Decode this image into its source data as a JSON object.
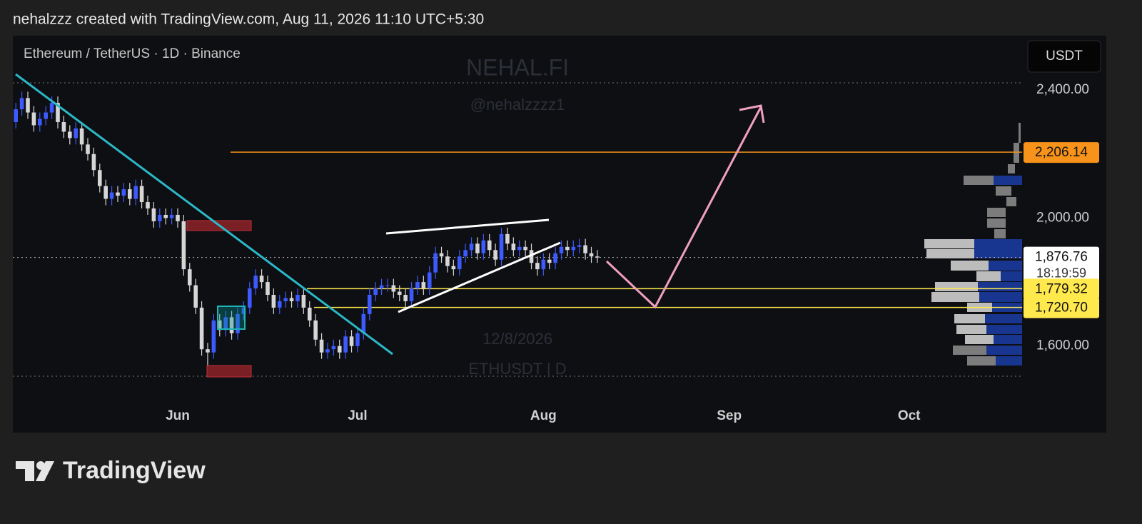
{
  "header": {
    "text": "nehalzzz created with TradingView.com, Aug 11, 2026 11:10 UTC+5:30"
  },
  "footer": {
    "logo": "TradingView"
  },
  "chart_data": {
    "type": "candlestick",
    "symbol": "Ethereum / TetherUS · 1D · Binance",
    "currency_button": "USDT",
    "watermarks": [
      "NEHAL.FI",
      "@nehalzzzz1",
      "12/8/2026",
      "ETHUSDT | D"
    ],
    "up_color": "#3d5afe",
    "down_color": "#d6d6d6",
    "open": [
      2300,
      2340,
      2375,
      2330,
      2290,
      2310,
      2330,
      2360,
      2300,
      2270,
      2250,
      2280,
      2230,
      2200,
      2150,
      2100,
      2060,
      2080,
      2070,
      2090,
      2060,
      2100,
      2050,
      2030,
      1990,
      2010,
      2000,
      2010,
      1990,
      1840,
      1790,
      1720,
      1590,
      1580,
      1680,
      1650,
      1690,
      1640,
      1700,
      1720,
      1780,
      1820,
      1800,
      1760,
      1720,
      1740,
      1750,
      1740,
      1760,
      1720,
      1680,
      1620,
      1580,
      1590,
      1600,
      1580,
      1630,
      1600,
      1640,
      1700,
      1760,
      1780,
      1790,
      1790,
      1770,
      1760,
      1740,
      1780,
      1800,
      1780,
      1830,
      1890,
      1880,
      1850,
      1840,
      1880,
      1900,
      1920,
      1890,
      1930,
      1900,
      1870,
      1950,
      1920,
      1900,
      1910,
      1900,
      1860,
      1840,
      1870,
      1860,
      1890,
      1910,
      1900,
      1910,
      1915,
      1890,
      1880
    ],
    "high": [
      2360,
      2395,
      2395,
      2350,
      2330,
      2350,
      2380,
      2380,
      2320,
      2290,
      2300,
      2300,
      2250,
      2220,
      2170,
      2120,
      2100,
      2100,
      2110,
      2110,
      2120,
      2120,
      2070,
      2050,
      2030,
      2030,
      2030,
      2030,
      2010,
      1860,
      1810,
      1740,
      1610,
      1700,
      1700,
      1710,
      1710,
      1720,
      1740,
      1800,
      1840,
      1840,
      1820,
      1780,
      1760,
      1770,
      1770,
      1780,
      1780,
      1740,
      1700,
      1640,
      1610,
      1620,
      1620,
      1650,
      1650,
      1660,
      1720,
      1780,
      1800,
      1810,
      1810,
      1810,
      1790,
      1780,
      1800,
      1820,
      1820,
      1850,
      1910,
      1910,
      1900,
      1870,
      1900,
      1920,
      1940,
      1940,
      1950,
      1950,
      1920,
      1970,
      1970,
      1940,
      1930,
      1930,
      1920,
      1880,
      1890,
      1890,
      1910,
      1930,
      1930,
      1930,
      1935,
      1935,
      1910,
      1900
    ],
    "low": [
      2280,
      2320,
      2310,
      2270,
      2270,
      2290,
      2310,
      2280,
      2250,
      2230,
      2230,
      2210,
      2180,
      2130,
      2080,
      2040,
      2040,
      2050,
      2050,
      2040,
      2040,
      2030,
      2010,
      1970,
      1970,
      1980,
      1980,
      1970,
      1820,
      1770,
      1700,
      1570,
      1540,
      1560,
      1630,
      1630,
      1620,
      1620,
      1680,
      1700,
      1760,
      1780,
      1740,
      1700,
      1700,
      1720,
      1720,
      1720,
      1700,
      1660,
      1600,
      1560,
      1560,
      1570,
      1560,
      1560,
      1580,
      1580,
      1620,
      1680,
      1740,
      1760,
      1770,
      1750,
      1740,
      1720,
      1720,
      1760,
      1760,
      1760,
      1810,
      1860,
      1830,
      1820,
      1820,
      1860,
      1880,
      1870,
      1870,
      1880,
      1850,
      1850,
      1900,
      1880,
      1880,
      1880,
      1840,
      1820,
      1820,
      1840,
      1840,
      1870,
      1880,
      1880,
      1890,
      1870,
      1860,
      1860
    ],
    "close": [
      2340,
      2375,
      2330,
      2290,
      2310,
      2330,
      2360,
      2300,
      2270,
      2250,
      2280,
      2230,
      2200,
      2150,
      2100,
      2060,
      2080,
      2070,
      2090,
      2060,
      2100,
      2050,
      2030,
      1990,
      2010,
      2000,
      2010,
      1990,
      1840,
      1790,
      1720,
      1590,
      1580,
      1680,
      1650,
      1690,
      1640,
      1700,
      1720,
      1780,
      1820,
      1800,
      1760,
      1720,
      1740,
      1750,
      1740,
      1760,
      1720,
      1680,
      1620,
      1580,
      1590,
      1600,
      1580,
      1630,
      1600,
      1640,
      1700,
      1760,
      1780,
      1790,
      1790,
      1770,
      1760,
      1740,
      1780,
      1800,
      1780,
      1830,
      1890,
      1880,
      1850,
      1840,
      1880,
      1900,
      1920,
      1890,
      1930,
      1900,
      1870,
      1950,
      1920,
      1900,
      1910,
      1900,
      1860,
      1840,
      1870,
      1860,
      1890,
      1910,
      1900,
      1910,
      1915,
      1890,
      1880,
      1876.76
    ],
    "xlim": [
      -0.5,
      181.9
    ],
    "xticks": [
      {
        "value": 27,
        "label": "Jun"
      },
      {
        "value": 57,
        "label": "Jul"
      },
      {
        "value": 88,
        "label": "Aug"
      },
      {
        "value": 119,
        "label": "Sep"
      },
      {
        "value": 149,
        "label": "Oct"
      }
    ],
    "ylim": [
      1432,
      2570
    ],
    "yticks": [
      {
        "value": 1600,
        "label": "1,600.00"
      },
      {
        "value": 2000,
        "label": "2,000.00"
      },
      {
        "value": 2400,
        "label": "2,400.00"
      }
    ],
    "price_lines": [
      {
        "value": 2206.14,
        "label": "2,206.14",
        "color": "#f7931a"
      },
      {
        "value": 1876.76,
        "label": "1,876.76",
        "color": "#ffffff",
        "countdown": "18:19:59"
      },
      {
        "value": 1779.32,
        "label": "1,779.32",
        "color": "#ffe94d"
      },
      {
        "value": 1720.7,
        "label": "1,720.70",
        "color": "#ffe94d"
      }
    ]
  }
}
